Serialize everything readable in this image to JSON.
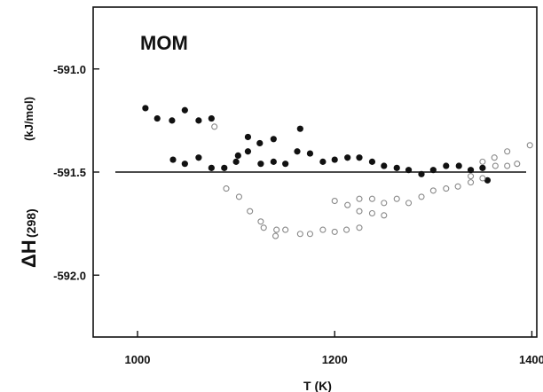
{
  "chart_data": {
    "type": "scatter",
    "title": "MOM",
    "xlabel": "T (K)",
    "ylabel_main": "ΔH",
    "ylabel_sub": "(298)",
    "ylabel_unit": "(kJ/mol)",
    "xlim": [
      955,
      1405
    ],
    "ylim": [
      -590.7,
      -592.3
    ],
    "x_ticks": [
      1000,
      1200,
      1400
    ],
    "x_tick_labels": [
      "1000",
      "1200",
      "1400"
    ],
    "y_ticks": [
      -592.0,
      -591.5,
      -591.0
    ],
    "y_tick_labels": [
      "-592.0",
      "-591.5",
      "-591.0"
    ],
    "grid": false,
    "reference_line": -591.5,
    "series": [
      {
        "marker": "filled-circle",
        "color": "#111111",
        "points": [
          [
            1008,
            -591.19
          ],
          [
            1020,
            -591.24
          ],
          [
            1035,
            -591.25
          ],
          [
            1048,
            -591.2
          ],
          [
            1062,
            -591.25
          ],
          [
            1075,
            -591.24
          ],
          [
            1036,
            -591.44
          ],
          [
            1048,
            -591.46
          ],
          [
            1062,
            -591.43
          ],
          [
            1075,
            -591.48
          ],
          [
            1088,
            -591.48
          ],
          [
            1100,
            -591.45
          ],
          [
            1102,
            -591.42
          ],
          [
            1112,
            -591.4
          ],
          [
            1125,
            -591.46
          ],
          [
            1138,
            -591.45
          ],
          [
            1150,
            -591.46
          ],
          [
            1162,
            -591.4
          ],
          [
            1175,
            -591.41
          ],
          [
            1188,
            -591.45
          ],
          [
            1200,
            -591.44
          ],
          [
            1213,
            -591.43
          ],
          [
            1225,
            -591.43
          ],
          [
            1238,
            -591.45
          ],
          [
            1250,
            -591.47
          ],
          [
            1263,
            -591.48
          ],
          [
            1275,
            -591.49
          ],
          [
            1288,
            -591.51
          ],
          [
            1300,
            -591.49
          ],
          [
            1313,
            -591.47
          ],
          [
            1326,
            -591.47
          ],
          [
            1338,
            -591.49
          ],
          [
            1350,
            -591.48
          ],
          [
            1355,
            -591.54
          ],
          [
            1112,
            -591.33
          ],
          [
            1124,
            -591.36
          ],
          [
            1138,
            -591.34
          ],
          [
            1165,
            -591.29
          ]
        ]
      },
      {
        "marker": "open-circle",
        "color": "#888888",
        "points": [
          [
            1078,
            -591.28
          ],
          [
            1090,
            -591.58
          ],
          [
            1103,
            -591.62
          ],
          [
            1114,
            -591.69
          ],
          [
            1125,
            -591.74
          ],
          [
            1128,
            -591.77
          ],
          [
            1140,
            -591.81
          ],
          [
            1141,
            -591.78
          ],
          [
            1150,
            -591.78
          ],
          [
            1165,
            -591.8
          ],
          [
            1175,
            -591.8
          ],
          [
            1188,
            -591.78
          ],
          [
            1200,
            -591.79
          ],
          [
            1212,
            -591.78
          ],
          [
            1225,
            -591.77
          ],
          [
            1200,
            -591.64
          ],
          [
            1213,
            -591.66
          ],
          [
            1225,
            -591.69
          ],
          [
            1238,
            -591.7
          ],
          [
            1250,
            -591.71
          ],
          [
            1225,
            -591.63
          ],
          [
            1238,
            -591.63
          ],
          [
            1250,
            -591.65
          ],
          [
            1263,
            -591.63
          ],
          [
            1275,
            -591.65
          ],
          [
            1288,
            -591.62
          ],
          [
            1300,
            -591.59
          ],
          [
            1313,
            -591.58
          ],
          [
            1325,
            -591.57
          ],
          [
            1338,
            -591.55
          ],
          [
            1350,
            -591.53
          ],
          [
            1338,
            -591.52
          ],
          [
            1350,
            -591.45
          ],
          [
            1362,
            -591.43
          ],
          [
            1375,
            -591.4
          ],
          [
            1375,
            -591.47
          ],
          [
            1385,
            -591.46
          ],
          [
            1398,
            -591.37
          ],
          [
            1363,
            -591.47
          ]
        ]
      }
    ]
  }
}
